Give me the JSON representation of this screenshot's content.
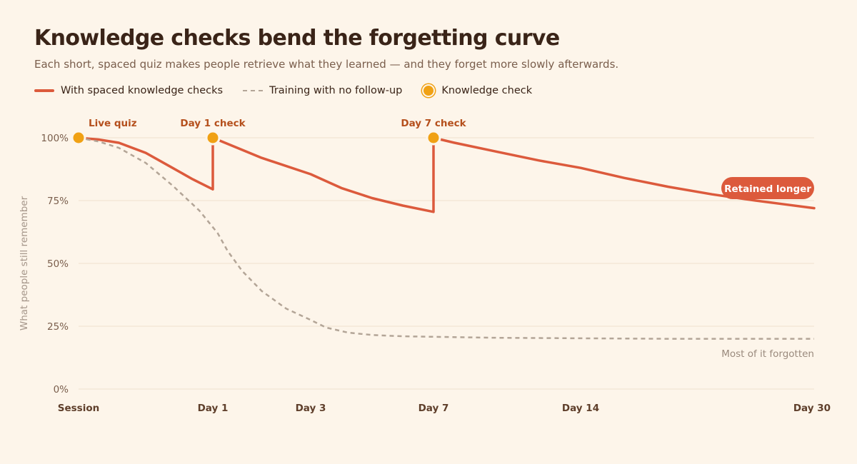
{
  "header": {
    "title": "Knowledge checks bend the forgetting curve",
    "subtitle": "Each short, spaced quiz makes people retrieve what they learned — and they forget more slowly afterwards."
  },
  "legend": {
    "items": [
      {
        "label": "With spaced knowledge checks",
        "style": "solid",
        "color": "#dc5a3c"
      },
      {
        "label": "Training with no follow-up",
        "style": "dashed",
        "color": "#b3a597"
      },
      {
        "label": "Knowledge check",
        "style": "dot",
        "color": "#f0a114"
      }
    ]
  },
  "chart_data": {
    "type": "line",
    "ylabel": "What people still remember",
    "xlabel": "",
    "ylim": [
      0,
      100
    ],
    "y_ticks": [
      0,
      25,
      50,
      75,
      100
    ],
    "y_tick_labels": [
      "0%",
      "25%",
      "50%",
      "75%",
      "100%"
    ],
    "x_ticks": [
      {
        "label": "Session",
        "day": 0
      },
      {
        "label": "Day 1",
        "day": 1
      },
      {
        "label": "Day 3",
        "day": 3
      },
      {
        "label": "Day 7",
        "day": 7
      },
      {
        "label": "Day 14",
        "day": 14
      },
      {
        "label": "Day 30",
        "day": 30
      }
    ],
    "grid": true,
    "series": [
      {
        "name": "With spaced knowledge checks",
        "color": "#dc5a3c",
        "style": "solid",
        "points": [
          [
            0,
            100
          ],
          [
            0.15,
            99.3
          ],
          [
            0.3,
            98
          ],
          [
            0.5,
            94
          ],
          [
            0.7,
            88
          ],
          [
            0.85,
            83.5
          ],
          [
            1,
            79.5
          ],
          [
            1,
            100
          ],
          [
            1.5,
            96
          ],
          [
            2,
            92
          ],
          [
            3,
            85.5
          ],
          [
            4,
            80
          ],
          [
            5,
            76
          ],
          [
            6,
            73
          ],
          [
            7,
            70.5
          ],
          [
            7,
            100
          ],
          [
            8,
            98
          ],
          [
            10,
            94.5
          ],
          [
            12,
            91
          ],
          [
            14,
            88
          ],
          [
            17,
            84
          ],
          [
            20,
            80.5
          ],
          [
            23,
            77.5
          ],
          [
            26,
            75
          ],
          [
            28,
            73.5
          ],
          [
            30,
            72
          ]
        ]
      },
      {
        "name": "Training with no follow-up",
        "color": "#b3a597",
        "style": "dashed",
        "points": [
          [
            0,
            100
          ],
          [
            0.15,
            98.5
          ],
          [
            0.3,
            96
          ],
          [
            0.5,
            90
          ],
          [
            0.7,
            81
          ],
          [
            0.9,
            71
          ],
          [
            1.1,
            62
          ],
          [
            1.3,
            55
          ],
          [
            1.6,
            47
          ],
          [
            2,
            39
          ],
          [
            2.5,
            32
          ],
          [
            3,
            27.5
          ],
          [
            3.5,
            24.5
          ],
          [
            4.2,
            22.5
          ],
          [
            5,
            21.5
          ],
          [
            6,
            21
          ],
          [
            7,
            20.8
          ],
          [
            10,
            20.4
          ],
          [
            14,
            20.2
          ],
          [
            20,
            20
          ],
          [
            30,
            20
          ]
        ]
      }
    ],
    "checks": [
      {
        "label": "Live quiz",
        "day": 0,
        "value": 100
      },
      {
        "label": "Day 1 check",
        "day": 1,
        "value": 100
      },
      {
        "label": "Day 7 check",
        "day": 7,
        "value": 100
      }
    ],
    "end_labels": {
      "retained": "Retained longer",
      "forgotten": "Most of it forgotten"
    }
  }
}
